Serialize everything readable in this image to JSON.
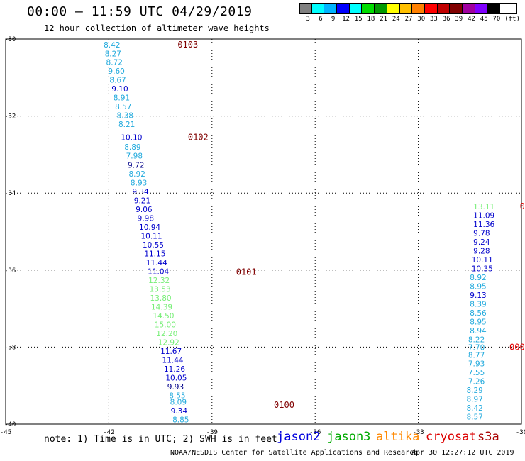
{
  "header": {
    "title": "00:00 – 11:59 UTC 04/29/2019",
    "subtitle": "12 hour collection of altimeter wave heights"
  },
  "legend": {
    "unit": "(ft)",
    "colors": [
      "#808080",
      "#00ffff",
      "#00b4ff",
      "#0000ff",
      "#00ffff",
      "#00dd00",
      "#009900",
      "#ffff00",
      "#ffc000",
      "#ff8000",
      "#ff0000",
      "#c00000",
      "#800000",
      "#a000a0",
      "#8000ff",
      "#000000"
    ],
    "labels": [
      "3",
      "6",
      "9",
      "12",
      "15",
      "18",
      "21",
      "24",
      "27",
      "30",
      "33",
      "36",
      "39",
      "42",
      "45",
      "70"
    ]
  },
  "map": {
    "x_range": [
      -45,
      -30
    ],
    "y_range": [
      -40,
      -30
    ],
    "x_ticks": [
      "-45",
      "-42",
      "-39",
      "-36",
      "-33",
      "-30"
    ],
    "y_ticks": [
      "-30",
      "-32",
      "-34",
      "-36",
      "-38",
      "-40"
    ],
    "tracks": [
      {
        "label": "0103",
        "lon": -40.0,
        "lat": -30.15,
        "color": "#800000"
      },
      {
        "label": "0102",
        "lon": -39.7,
        "lat": -32.55,
        "color": "#800000"
      },
      {
        "label": "0101",
        "lon": -38.3,
        "lat": -36.05,
        "color": "#800000"
      },
      {
        "label": "0100",
        "lon": -37.2,
        "lat": -39.5,
        "color": "#800000"
      },
      {
        "label": "0",
        "lon": -30.05,
        "lat": -34.35,
        "color": "#e00000"
      },
      {
        "label": "000",
        "lon": -30.35,
        "lat": -38.0,
        "color": "#e00000"
      }
    ],
    "points": [
      {
        "v": "8.42",
        "lon": -42.15,
        "lat": -30.15,
        "color": "#22aadd"
      },
      {
        "v": "8.27",
        "lon": -42.12,
        "lat": -30.38,
        "color": "#22aadd"
      },
      {
        "v": "8.72",
        "lon": -42.08,
        "lat": -30.6,
        "color": "#22aadd"
      },
      {
        "v": "9.60",
        "lon": -42.02,
        "lat": -30.83,
        "color": "#22aadd"
      },
      {
        "v": "8.67",
        "lon": -41.98,
        "lat": -31.06,
        "color": "#22aadd"
      },
      {
        "v": "9.10",
        "lon": -41.92,
        "lat": -31.29,
        "color": "#0000cc"
      },
      {
        "v": "8.91",
        "lon": -41.87,
        "lat": -31.52,
        "color": "#22aadd"
      },
      {
        "v": "8.57",
        "lon": -41.82,
        "lat": -31.75,
        "color": "#22aadd"
      },
      {
        "v": "8.38",
        "lon": -41.77,
        "lat": -31.98,
        "color": "#22aadd"
      },
      {
        "v": "8.21",
        "lon": -41.72,
        "lat": -32.21,
        "color": "#22aadd"
      },
      {
        "v": "10.10",
        "lon": -41.65,
        "lat": -32.55,
        "color": "#0000cc"
      },
      {
        "v": "8.89",
        "lon": -41.55,
        "lat": -32.8,
        "color": "#22aadd"
      },
      {
        "v": "7.98",
        "lon": -41.5,
        "lat": -33.03,
        "color": "#22aadd"
      },
      {
        "v": "9.72",
        "lon": -41.45,
        "lat": -33.27,
        "color": "#000088"
      },
      {
        "v": "8.92",
        "lon": -41.42,
        "lat": -33.5,
        "color": "#22aadd"
      },
      {
        "v": "8.93",
        "lon": -41.37,
        "lat": -33.73,
        "color": "#22aadd"
      },
      {
        "v": "9.34",
        "lon": -41.32,
        "lat": -33.96,
        "color": "#0000cc"
      },
      {
        "v": "9.21",
        "lon": -41.27,
        "lat": -34.19,
        "color": "#0000cc"
      },
      {
        "v": "9.06",
        "lon": -41.22,
        "lat": -34.42,
        "color": "#0000cc"
      },
      {
        "v": "9.98",
        "lon": -41.17,
        "lat": -34.65,
        "color": "#0000cc"
      },
      {
        "v": "10.94",
        "lon": -41.12,
        "lat": -34.88,
        "color": "#0000cc"
      },
      {
        "v": "10.11",
        "lon": -41.07,
        "lat": -35.11,
        "color": "#0000cc"
      },
      {
        "v": "10.55",
        "lon": -41.02,
        "lat": -35.34,
        "color": "#0000cc"
      },
      {
        "v": "11.15",
        "lon": -40.97,
        "lat": -35.57,
        "color": "#0000cc"
      },
      {
        "v": "11.44",
        "lon": -40.92,
        "lat": -35.8,
        "color": "#0000cc"
      },
      {
        "v": "11.04",
        "lon": -40.87,
        "lat": -36.03,
        "color": "#0000cc"
      },
      {
        "v": "12.32",
        "lon": -40.85,
        "lat": -36.26,
        "color": "#77ee77"
      },
      {
        "v": "13.53",
        "lon": -40.82,
        "lat": -36.49,
        "color": "#77ee77"
      },
      {
        "v": "13.80",
        "lon": -40.8,
        "lat": -36.72,
        "color": "#77ee77"
      },
      {
        "v": "14.39",
        "lon": -40.77,
        "lat": -36.95,
        "color": "#77ee77"
      },
      {
        "v": "14.50",
        "lon": -40.72,
        "lat": -37.18,
        "color": "#77ee77"
      },
      {
        "v": "15.00",
        "lon": -40.67,
        "lat": -37.41,
        "color": "#77ee77"
      },
      {
        "v": "12.20",
        "lon": -40.62,
        "lat": -37.64,
        "color": "#77ee77"
      },
      {
        "v": "12.92",
        "lon": -40.57,
        "lat": -37.87,
        "color": "#77ee77"
      },
      {
        "v": "11.67",
        "lon": -40.5,
        "lat": -38.1,
        "color": "#0000cc"
      },
      {
        "v": "11.44",
        "lon": -40.45,
        "lat": -38.33,
        "color": "#0000cc"
      },
      {
        "v": "11.26",
        "lon": -40.4,
        "lat": -38.56,
        "color": "#0000cc"
      },
      {
        "v": "10.05",
        "lon": -40.35,
        "lat": -38.79,
        "color": "#0000cc"
      },
      {
        "v": "9.93",
        "lon": -40.3,
        "lat": -39.02,
        "color": "#000088"
      },
      {
        "v": "8.55",
        "lon": -40.25,
        "lat": -39.25,
        "color": "#22aadd"
      },
      {
        "v": "8.09",
        "lon": -40.22,
        "lat": -39.42,
        "color": "#22aadd"
      },
      {
        "v": "9.34",
        "lon": -40.2,
        "lat": -39.65,
        "color": "#0000cc"
      },
      {
        "v": "8.85",
        "lon": -40.15,
        "lat": -39.88,
        "color": "#22aadd"
      },
      {
        "v": "13.11",
        "lon": -31.4,
        "lat": -34.35,
        "color": "#77ee77"
      },
      {
        "v": "11.09",
        "lon": -31.4,
        "lat": -34.58,
        "color": "#0000cc"
      },
      {
        "v": "11.36",
        "lon": -31.4,
        "lat": -34.81,
        "color": "#0000cc"
      },
      {
        "v": "9.78",
        "lon": -31.4,
        "lat": -35.04,
        "color": "#0000cc"
      },
      {
        "v": "9.24",
        "lon": -31.4,
        "lat": -35.27,
        "color": "#0000cc"
      },
      {
        "v": "9.28",
        "lon": -31.4,
        "lat": -35.5,
        "color": "#0000cc"
      },
      {
        "v": "10.11",
        "lon": -31.45,
        "lat": -35.73,
        "color": "#0000cc"
      },
      {
        "v": "10.35",
        "lon": -31.45,
        "lat": -35.96,
        "color": "#0000cc"
      },
      {
        "v": "8.92",
        "lon": -31.5,
        "lat": -36.19,
        "color": "#22aadd"
      },
      {
        "v": "8.95",
        "lon": -31.5,
        "lat": -36.42,
        "color": "#22aadd"
      },
      {
        "v": "9.13",
        "lon": -31.5,
        "lat": -36.65,
        "color": "#0000cc"
      },
      {
        "v": "8.39",
        "lon": -31.5,
        "lat": -36.88,
        "color": "#22aadd"
      },
      {
        "v": "8.56",
        "lon": -31.5,
        "lat": -37.11,
        "color": "#22aadd"
      },
      {
        "v": "8.95",
        "lon": -31.5,
        "lat": -37.34,
        "color": "#22aadd"
      },
      {
        "v": "8.94",
        "lon": -31.5,
        "lat": -37.57,
        "color": "#22aadd"
      },
      {
        "v": "8.22",
        "lon": -31.55,
        "lat": -37.8,
        "color": "#22aadd"
      },
      {
        "v": "7.70",
        "lon": -31.55,
        "lat": -38.0,
        "color": "#22aadd"
      },
      {
        "v": "8.77",
        "lon": -31.55,
        "lat": -38.2,
        "color": "#22aadd"
      },
      {
        "v": "7.93",
        "lon": -31.55,
        "lat": -38.43,
        "color": "#22aadd"
      },
      {
        "v": "7.55",
        "lon": -31.55,
        "lat": -38.66,
        "color": "#22aadd"
      },
      {
        "v": "7.26",
        "lon": -31.55,
        "lat": -38.89,
        "color": "#22aadd"
      },
      {
        "v": "8.29",
        "lon": -31.6,
        "lat": -39.12,
        "color": "#22aadd"
      },
      {
        "v": "8.97",
        "lon": -31.6,
        "lat": -39.35,
        "color": "#22aadd"
      },
      {
        "v": "8.42",
        "lon": -31.6,
        "lat": -39.58,
        "color": "#22aadd"
      },
      {
        "v": "8.57",
        "lon": -31.6,
        "lat": -39.81,
        "color": "#22aadd"
      }
    ]
  },
  "footer": {
    "note": "note: 1) Time is in UTC; 2) SWH is in feet",
    "satellites": [
      {
        "name": "jason2",
        "color": "#0000dd"
      },
      {
        "name": "jason3",
        "color": "#00aa00"
      },
      {
        "name": "altika",
        "color": "#ff8800"
      },
      {
        "name": "cryosat",
        "color": "#dd0000"
      },
      {
        "name": "s3a",
        "color": "#aa0000"
      }
    ],
    "credit": "NOAA/NESDIS Center for Satellite Applications and Research",
    "generated": "Apr 30 12:27:12 UTC 2019"
  }
}
